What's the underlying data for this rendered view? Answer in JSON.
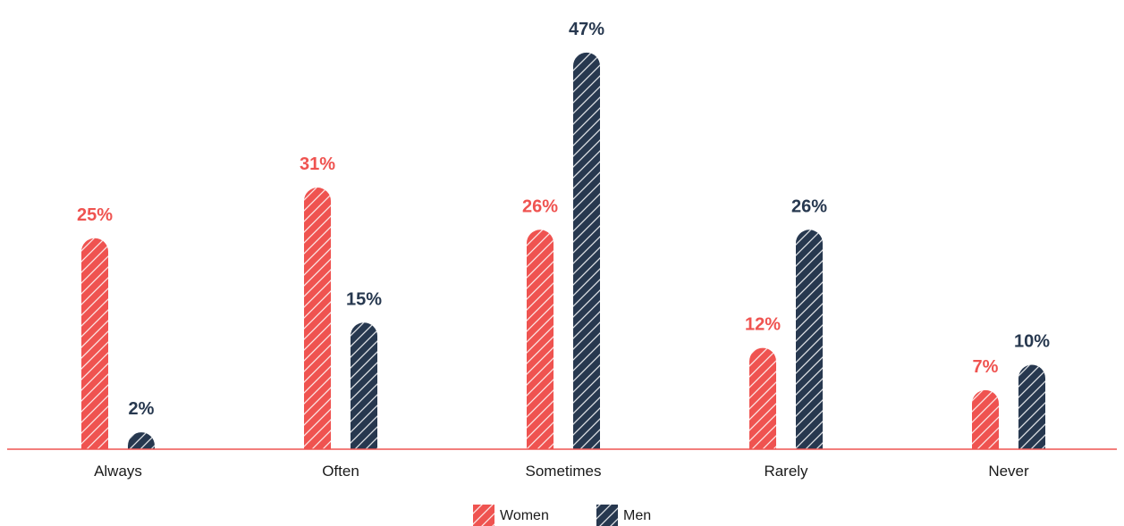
{
  "chart_data": {
    "type": "bar",
    "categories": [
      "Always",
      "Often",
      "Sometimes",
      "Rarely",
      "Never"
    ],
    "series": [
      {
        "name": "Women",
        "values": [
          25,
          31,
          26,
          12,
          7
        ],
        "labels": [
          "25%",
          "31%",
          "26%",
          "12%",
          "7%"
        ],
        "color": "#EF5350"
      },
      {
        "name": "Men",
        "values": [
          2,
          15,
          47,
          26,
          10
        ],
        "labels": [
          "2%",
          "15%",
          "47%",
          "26%",
          "10%"
        ],
        "color": "#27384F"
      }
    ],
    "ylim": [
      0,
      50
    ],
    "unit": "%",
    "legend_position": "bottom-center",
    "baseline_color": "#EF5350",
    "bar_style": "hatched-rounded-top"
  }
}
